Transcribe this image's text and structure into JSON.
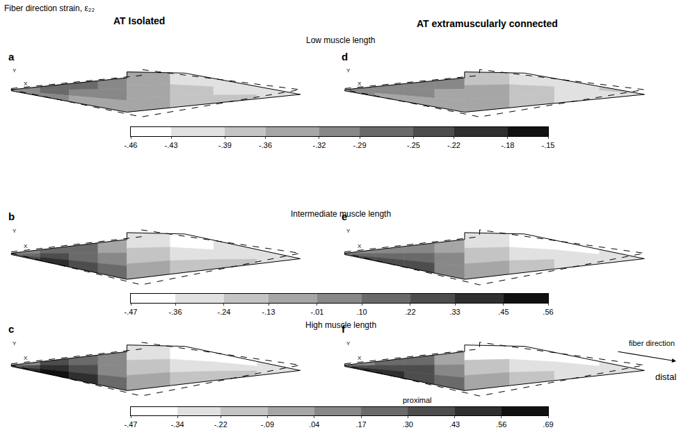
{
  "chart_data": {
    "type": "heatmap",
    "title": "Fiber direction strain, ε₂₂",
    "columns": [
      "AT Isolated",
      "AT extramuscularly connected"
    ],
    "triad": [
      "Y",
      "X"
    ],
    "annotations": [
      "fiber direction",
      "proximal",
      "distal"
    ],
    "rows": [
      {
        "label": "Low muscle length",
        "colorbar": {
          "range": [
            -0.46,
            -0.15
          ],
          "ticks": [
            {
              "value": -0.46,
              "label": "-.46"
            },
            {
              "value": -0.43,
              "label": "-.43"
            },
            {
              "value": -0.39,
              "label": "-.39"
            },
            {
              "value": -0.36,
              "label": "-.36"
            },
            {
              "value": -0.32,
              "label": "-.32"
            },
            {
              "value": -0.29,
              "label": "-.29"
            },
            {
              "value": -0.25,
              "label": "-.25"
            },
            {
              "value": -0.22,
              "label": "-.22"
            },
            {
              "value": -0.18,
              "label": "-.18"
            },
            {
              "value": -0.15,
              "label": "-.15"
            }
          ]
        },
        "panels": [
          {
            "letter": "a",
            "cells": [
              [
                -0.3,
                -0.29,
                -0.28,
                -0.3,
                -0.36,
                -0.4,
                -0.42,
                -0.4
              ],
              [
                -0.3,
                -0.29,
                -0.3,
                -0.32,
                -0.35,
                -0.38,
                -0.4,
                -0.43
              ],
              [
                -0.31,
                -0.32,
                -0.33,
                -0.34,
                -0.35,
                -0.37,
                -0.39,
                -0.42
              ]
            ]
          },
          {
            "letter": "d",
            "cells": [
              [
                -0.31,
                -0.3,
                -0.3,
                -0.32,
                -0.38,
                -0.42,
                -0.4,
                -0.38
              ],
              [
                -0.31,
                -0.31,
                -0.31,
                -0.33,
                -0.36,
                -0.39,
                -0.41,
                -0.42
              ],
              [
                -0.32,
                -0.33,
                -0.34,
                -0.35,
                -0.36,
                -0.38,
                -0.4,
                -0.43
              ]
            ]
          }
        ]
      },
      {
        "label": "Intermediate muscle length",
        "colorbar": {
          "range": [
            -0.47,
            0.56
          ],
          "ticks": [
            {
              "value": -0.47,
              "label": "-.47"
            },
            {
              "value": -0.36,
              "label": "-.36"
            },
            {
              "value": -0.24,
              "label": "-.24"
            },
            {
              "value": -0.13,
              "label": "-.13"
            },
            {
              "value": -0.01,
              "label": "-.01"
            },
            {
              "value": 0.1,
              "label": ".10"
            },
            {
              "value": 0.22,
              "label": ".22"
            },
            {
              "value": 0.33,
              "label": ".33"
            },
            {
              "value": 0.45,
              "label": ".45"
            },
            {
              "value": 0.56,
              "label": ".56"
            }
          ]
        },
        "panels": [
          {
            "letter": "b",
            "cells": [
              [
                0.05,
                0.15,
                0.1,
                -0.05,
                -0.3,
                -0.42,
                -0.35,
                -0.3
              ],
              [
                0.2,
                0.28,
                0.2,
                0.05,
                -0.15,
                -0.25,
                -0.3,
                -0.28
              ],
              [
                0.3,
                0.35,
                0.28,
                0.12,
                -0.05,
                -0.15,
                -0.22,
                -0.25
              ]
            ]
          },
          {
            "letter": "e",
            "cells": [
              [
                0.0,
                0.08,
                0.05,
                -0.1,
                -0.35,
                -0.45,
                -0.38,
                -0.3
              ],
              [
                0.15,
                0.2,
                0.15,
                0.0,
                -0.18,
                -0.28,
                -0.32,
                -0.28
              ],
              [
                0.25,
                0.3,
                0.22,
                0.08,
                -0.08,
                -0.18,
                -0.25,
                -0.26
              ]
            ]
          }
        ]
      },
      {
        "label": "High muscle length",
        "colorbar": {
          "range": [
            -0.47,
            0.69
          ],
          "ticks": [
            {
              "value": -0.47,
              "label": "-.47"
            },
            {
              "value": -0.34,
              "label": "-.34"
            },
            {
              "value": -0.22,
              "label": "-.22"
            },
            {
              "value": -0.09,
              "label": "-.09"
            },
            {
              "value": 0.04,
              "label": ".04"
            },
            {
              "value": 0.17,
              "label": ".17"
            },
            {
              "value": 0.3,
              "label": ".30"
            },
            {
              "value": 0.43,
              "label": ".43"
            },
            {
              "value": 0.56,
              "label": ".56"
            },
            {
              "value": 0.69,
              "label": ".69"
            }
          ]
        },
        "panels": [
          {
            "letter": "c",
            "cells": [
              [
                0.15,
                0.3,
                0.25,
                0.05,
                -0.3,
                -0.45,
                -0.35,
                -0.28
              ],
              [
                0.35,
                0.48,
                0.38,
                0.15,
                -0.1,
                -0.25,
                -0.3,
                -0.26
              ],
              [
                0.5,
                0.6,
                0.45,
                0.22,
                0.0,
                -0.15,
                -0.22,
                -0.24
              ]
            ]
          },
          {
            "letter": "f",
            "cells": [
              [
                0.1,
                0.25,
                0.2,
                0.0,
                -0.35,
                -0.46,
                -0.38,
                -0.28
              ],
              [
                0.3,
                0.42,
                0.32,
                0.1,
                -0.15,
                -0.28,
                -0.32,
                -0.26
              ],
              [
                0.45,
                0.52,
                0.4,
                0.18,
                -0.02,
                -0.16,
                -0.24,
                -0.25
              ]
            ]
          }
        ]
      }
    ]
  }
}
